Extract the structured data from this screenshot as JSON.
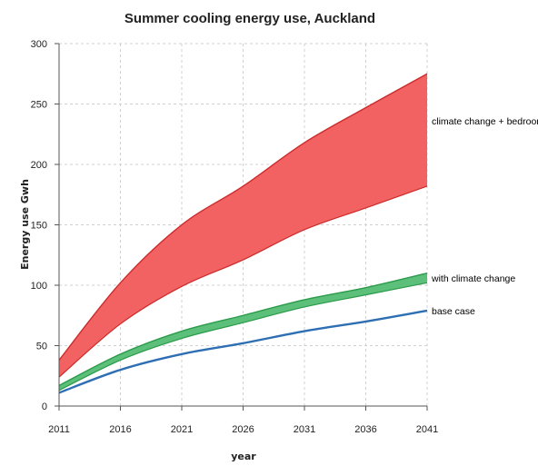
{
  "chart_data": {
    "type": "area",
    "title": "Summer cooling energy use, Auckland",
    "xlabel": "year",
    "ylabel": "Energy use Gwh",
    "xlim": [
      2011,
      2041
    ],
    "ylim": [
      0,
      300
    ],
    "x_ticks": [
      2011,
      2016,
      2021,
      2026,
      2031,
      2036,
      2041
    ],
    "y_ticks": [
      0,
      50,
      100,
      150,
      200,
      250,
      300
    ],
    "grid": true,
    "series": [
      {
        "name": "climate change + bedrooms",
        "kind": "band",
        "color": "#f26262",
        "edge_color": "#cc2b2b",
        "x": [
          2011,
          2016,
          2021,
          2026,
          2031,
          2036,
          2041
        ],
        "upper": [
          38,
          102,
          150,
          182,
          218,
          247,
          275
        ],
        "lower": [
          24,
          68,
          99,
          121,
          146,
          164,
          182
        ]
      },
      {
        "name": "with climate change",
        "kind": "band",
        "color": "#5cc07a",
        "edge_color": "#2b9a4a",
        "x": [
          2011,
          2016,
          2021,
          2026,
          2031,
          2036,
          2041
        ],
        "upper": [
          17,
          43,
          62,
          75,
          88,
          98,
          110
        ],
        "lower": [
          13,
          38,
          56,
          69,
          82,
          92,
          102
        ]
      },
      {
        "name": "base case",
        "kind": "line",
        "color": "#2e6fb4",
        "x": [
          2011,
          2016,
          2021,
          2026,
          2031,
          2036,
          2041
        ],
        "values": [
          11,
          30,
          43,
          52,
          62,
          70,
          79
        ]
      }
    ]
  }
}
